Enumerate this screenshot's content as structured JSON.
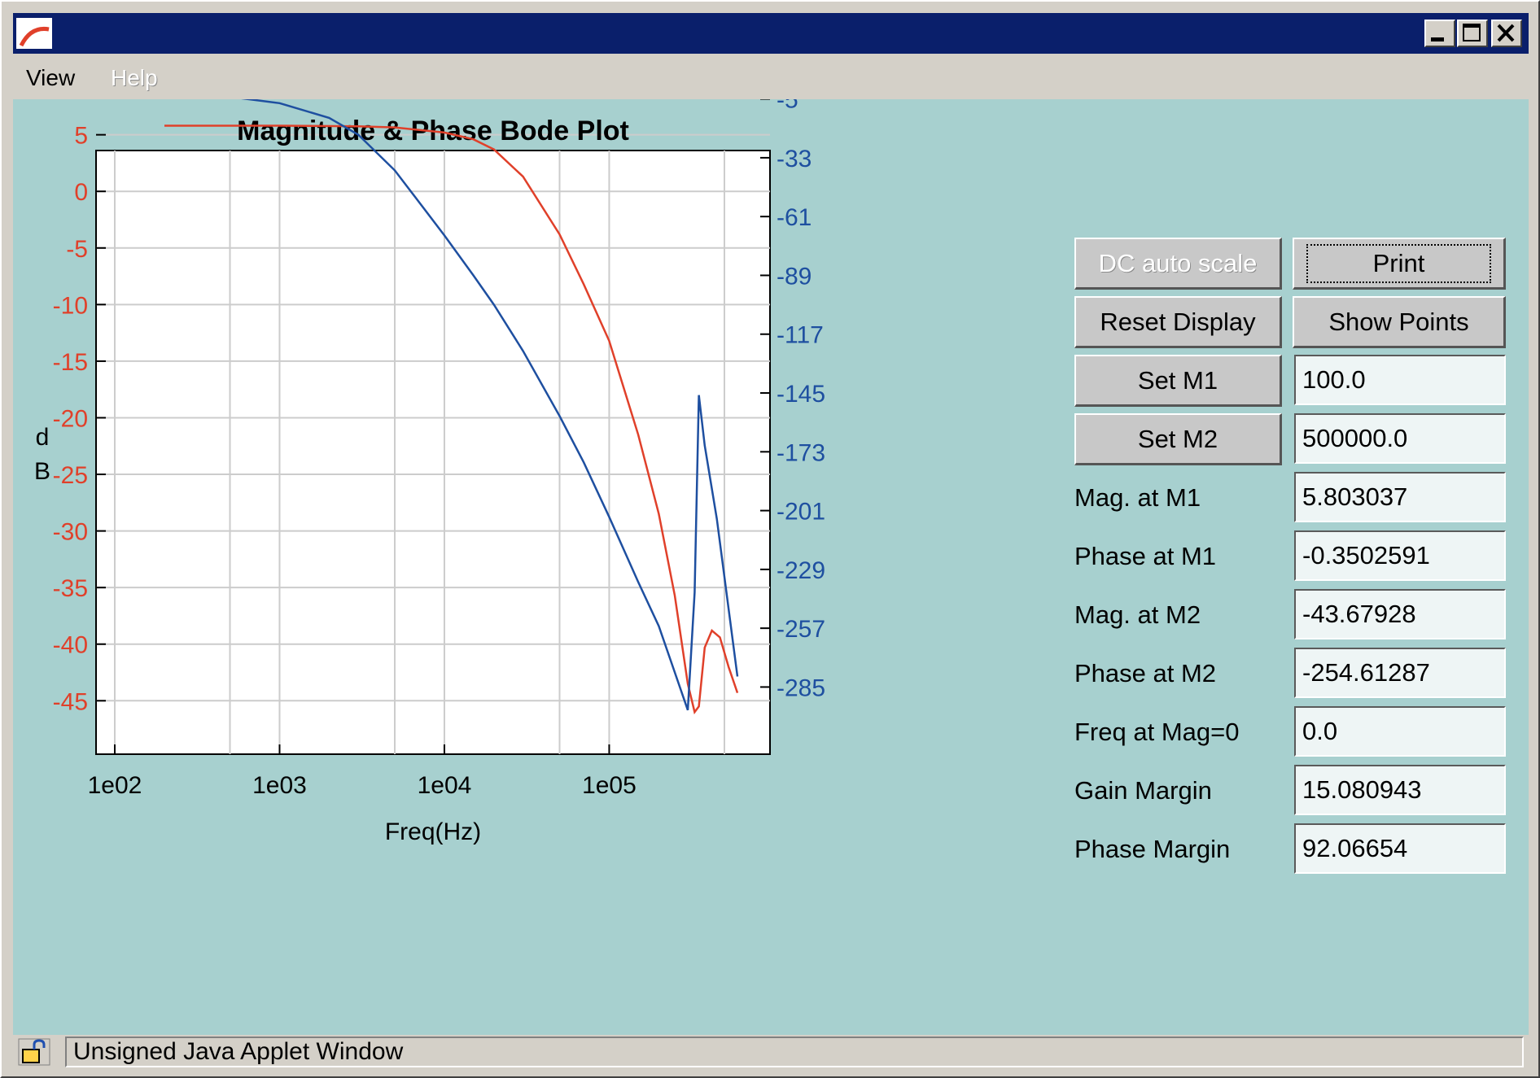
{
  "window": {
    "title": ""
  },
  "menu": {
    "items": [
      {
        "label": "View",
        "enabled": true
      },
      {
        "label": "Help",
        "enabled": false
      }
    ]
  },
  "status": {
    "text": "Unsigned Java Applet Window"
  },
  "colors": {
    "background": "#a7d0cf",
    "magnitude": "#e0402a",
    "phase": "#1e4fa0",
    "titlebar": "#0a1f6b"
  },
  "controls": {
    "dc_auto_scale": "DC auto scale",
    "print": "Print",
    "reset_display": "Reset Display",
    "show_points": "Show Points",
    "set_m1": "Set M1",
    "set_m1_value": "100.0",
    "set_m2": "Set M2",
    "set_m2_value": "500000.0"
  },
  "readouts": [
    {
      "label": "Mag. at M1",
      "value": "5.803037"
    },
    {
      "label": "Phase at M1",
      "value": "-0.3502591"
    },
    {
      "label": "Mag. at M2",
      "value": "-43.67928"
    },
    {
      "label": "Phase at M2",
      "value": "-254.61287"
    },
    {
      "label": "Freq at Mag=0",
      "value": "0.0"
    },
    {
      "label": "Gain Margin",
      "value": "15.080943"
    },
    {
      "label": "Phase Margin",
      "value": "92.06654"
    }
  ],
  "chart_data": {
    "type": "line",
    "title": "Magnitude & Phase Bode Plot",
    "xlabel": "Freq(Hz)",
    "ylabel": "dB",
    "xscale": "log",
    "grid": true,
    "xlim": [
      100,
      600000
    ],
    "ylim": [
      -46.2,
      9
    ],
    "y2lim": [
      -298,
      -0.5
    ],
    "x_ticks": [
      {
        "value": 100,
        "label": "1e02"
      },
      {
        "value": 1000,
        "label": "1e03"
      },
      {
        "value": 10000,
        "label": "1e04"
      },
      {
        "value": 100000,
        "label": "1e05"
      }
    ],
    "x_minor_ticks": [
      500,
      5000,
      50000,
      500000
    ],
    "y_ticks": [
      5,
      0,
      -5,
      -10,
      -15,
      -20,
      -25,
      -30,
      -35,
      -40,
      -45
    ],
    "y2_ticks": [
      -5,
      -33,
      -61,
      -89,
      -117,
      -145,
      -173,
      -201,
      -229,
      -257,
      -285
    ],
    "series": [
      {
        "axis": "left",
        "color": "#e0402a",
        "x": [
          200,
          1000,
          3000,
          5000,
          10000,
          15000,
          20000,
          30000,
          50000,
          70000,
          100000,
          150000,
          200000,
          250000,
          300000,
          330000,
          350000,
          380000,
          420000,
          470000,
          530000,
          600000
        ],
        "y": [
          5.8,
          5.8,
          5.75,
          5.65,
          5.2,
          4.6,
          3.7,
          1.3,
          -3.8,
          -8.2,
          -13.2,
          -21.5,
          -28.5,
          -35.7,
          -43.5,
          -46,
          -45.5,
          -40.3,
          -38.8,
          -39.4,
          -42.0,
          -44.3
        ]
      },
      {
        "axis": "right",
        "color": "#1e4fa0",
        "x": [
          100,
          500,
          1000,
          2000,
          3000,
          5000,
          7000,
          10000,
          15000,
          20000,
          30000,
          50000,
          70000,
          100000,
          150000,
          200000,
          250000,
          300000,
          330000,
          350000,
          380000,
          450000,
          600000
        ],
        "y": [
          -0.5,
          -4,
          -7,
          -14,
          -22,
          -39,
          -54,
          -70,
          -89,
          -103,
          -125,
          -156,
          -178,
          -204,
          -235,
          -256,
          -278,
          -296,
          -240,
          -146,
          -170,
          -205,
          -280
        ]
      }
    ]
  }
}
